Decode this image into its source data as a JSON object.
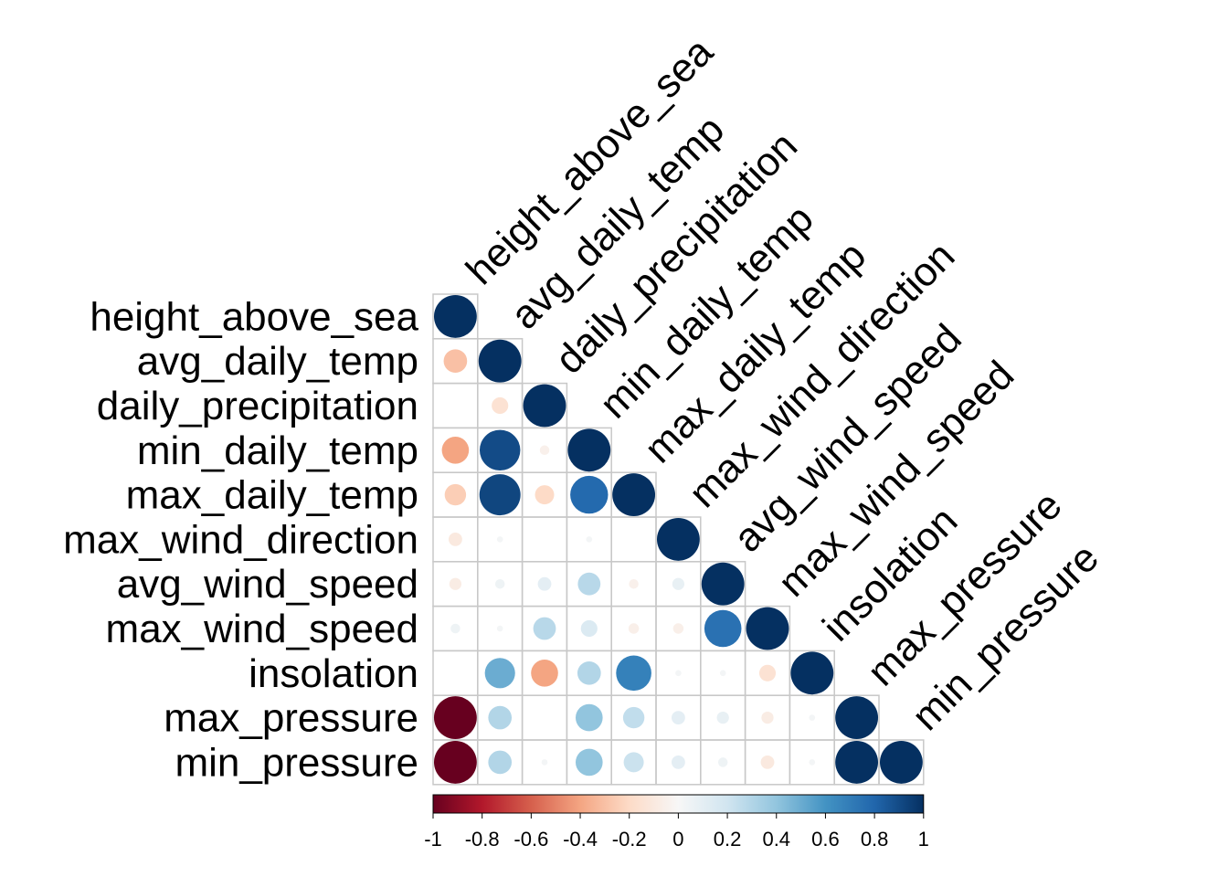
{
  "chart_data": {
    "type": "heatmap",
    "subtype": "correlation-matrix-lower-triangle-circles",
    "variables": [
      "height_above_sea",
      "avg_daily_temp",
      "daily_precipitation",
      "min_daily_temp",
      "max_daily_temp",
      "max_wind_direction",
      "avg_wind_speed",
      "max_wind_speed",
      "insolation",
      "max_pressure",
      "min_pressure"
    ],
    "matrix": [
      [
        1.0
      ],
      [
        -0.3,
        1.0
      ],
      [
        0.0,
        -0.15,
        1.0
      ],
      [
        -0.4,
        0.9,
        -0.05,
        1.0
      ],
      [
        -0.25,
        0.92,
        -0.2,
        0.78,
        1.0
      ],
      [
        -0.1,
        0.02,
        0.0,
        0.02,
        0.0,
        1.0
      ],
      [
        -0.08,
        0.05,
        0.1,
        0.28,
        -0.05,
        0.08,
        1.0
      ],
      [
        0.05,
        0.02,
        0.28,
        0.15,
        -0.06,
        -0.06,
        0.75,
        1.0
      ],
      [
        0.0,
        0.5,
        -0.4,
        0.3,
        0.68,
        0.02,
        0.02,
        -0.15,
        1.0
      ],
      [
        -1.0,
        0.3,
        0.0,
        0.4,
        0.25,
        0.1,
        0.08,
        -0.08,
        0.02,
        1.0
      ],
      [
        -1.0,
        0.3,
        0.02,
        0.4,
        0.22,
        0.1,
        0.05,
        -0.1,
        0.02,
        1.0,
        1.0
      ]
    ],
    "colorbar": {
      "ticks": [
        "-1",
        "-0.8",
        "-0.6",
        "-0.4",
        "-0.2",
        "0",
        "0.2",
        "0.4",
        "0.6",
        "0.8",
        "1"
      ],
      "range": [
        -1,
        1
      ]
    },
    "colors": {
      "negative_extreme": "#67001F",
      "neutral": "#F7F7F7",
      "positive_extreme": "#053061",
      "grid": "#C8C8C8"
    }
  }
}
